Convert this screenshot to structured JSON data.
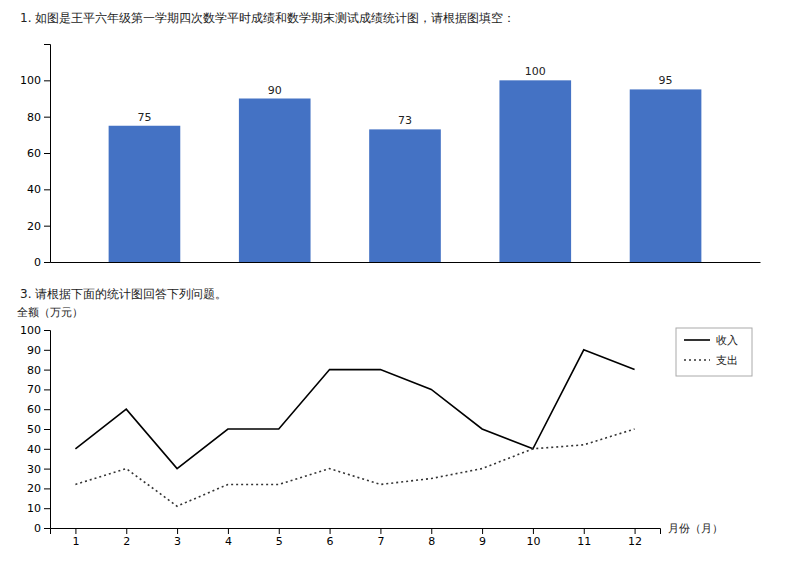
{
  "chart_data": [
    {
      "type": "bar",
      "title": "1. 如图是王平六年级第一学期四次数学平时成绩和数学期末测试成绩统计图，请根据图填空：",
      "categories": [
        null,
        null,
        null,
        null,
        null
      ],
      "values": [
        75,
        90,
        73,
        100,
        95
      ],
      "color": "#4472C4",
      "ylim": [
        0,
        120
      ],
      "yticks": [
        0,
        20,
        40,
        60,
        80,
        100
      ],
      "data_labels": true,
      "tick_labels": "y",
      "grid": false
    },
    {
      "type": "line",
      "title": "3. 请根据下面的统计图回答下列问题。",
      "xlabel": "月份（月）",
      "ylabel": "全额（万元）",
      "x": [
        1,
        2,
        3,
        4,
        5,
        6,
        7,
        8,
        9,
        10,
        11,
        12
      ],
      "series": [
        {
          "name": "收入",
          "color": "#000000",
          "line_style": "solid",
          "values": [
            40,
            60,
            30,
            50,
            50,
            80,
            80,
            70,
            50,
            40,
            90,
            80
          ]
        },
        {
          "name": "支出",
          "color": "#333333",
          "line_style": "dotted",
          "values": [
            22,
            30,
            11,
            22,
            22,
            30,
            22,
            25,
            30,
            40,
            42,
            50
          ]
        }
      ],
      "xlim": [
        0.5,
        12.5
      ],
      "xticks": [
        1,
        2,
        3,
        4,
        5,
        6,
        7,
        8,
        9,
        10,
        11,
        12
      ],
      "ylim": [
        0,
        100
      ],
      "yticks": [
        0,
        10,
        20,
        30,
        40,
        50,
        60,
        70,
        80,
        90,
        100
      ],
      "legend": "right",
      "grid": false
    }
  ]
}
